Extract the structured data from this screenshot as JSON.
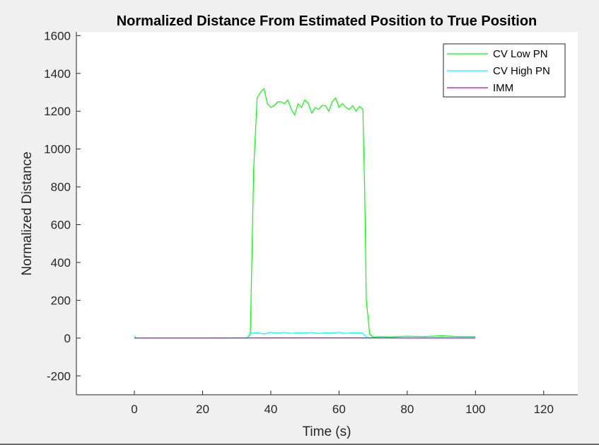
{
  "chart_data": {
    "type": "line",
    "title": "Normalized Distance From Estimated Position to True Position",
    "xlabel": "Time (s)",
    "ylabel": "Normalized Distance",
    "xlim": [
      -17,
      130
    ],
    "ylim": [
      -300,
      1620
    ],
    "xticks": [
      0,
      20,
      40,
      60,
      80,
      100,
      120
    ],
    "xtick_labels": [
      "0",
      "20",
      "40",
      "60",
      "80",
      "100",
      "120"
    ],
    "yticks": [
      -200,
      0,
      200,
      400,
      600,
      800,
      1000,
      1200,
      1400,
      1600
    ],
    "ytick_labels": [
      "-200",
      "0",
      "200",
      "400",
      "600",
      "800",
      "1000",
      "1200",
      "1400",
      "1600"
    ],
    "grid": false,
    "legend_position": "top-right",
    "series": [
      {
        "name": "CV Low PN",
        "color": "#00ff00",
        "x": [
          0,
          10,
          20,
          30,
          33,
          34,
          35,
          36,
          37,
          38,
          39,
          40,
          41,
          42,
          43,
          44,
          45,
          46,
          47,
          48,
          49,
          50,
          51,
          52,
          53,
          54,
          55,
          56,
          57,
          58,
          59,
          60,
          61,
          62,
          63,
          64,
          65,
          66,
          67,
          67.5,
          68,
          69,
          70,
          72,
          75,
          80,
          85,
          90,
          95,
          100
        ],
        "y": [
          0,
          0,
          0,
          0,
          0,
          20,
          900,
          1270,
          1300,
          1320,
          1240,
          1220,
          1230,
          1250,
          1250,
          1240,
          1260,
          1210,
          1180,
          1240,
          1220,
          1260,
          1240,
          1190,
          1220,
          1210,
          1230,
          1230,
          1200,
          1250,
          1270,
          1220,
          1240,
          1220,
          1210,
          1230,
          1200,
          1225,
          1210,
          800,
          200,
          20,
          5,
          8,
          6,
          10,
          8,
          12,
          8,
          8
        ]
      },
      {
        "name": "CV High PN",
        "color": "#00ffff",
        "x": [
          0,
          0.5,
          1,
          5,
          10,
          20,
          30,
          33,
          34,
          36,
          38,
          40,
          42,
          44,
          46,
          48,
          50,
          52,
          54,
          56,
          58,
          60,
          62,
          64,
          66,
          67,
          68,
          69,
          70,
          80,
          90,
          100
        ],
        "y": [
          12,
          2,
          0,
          0,
          0,
          0,
          0,
          0,
          25,
          28,
          22,
          30,
          26,
          30,
          25,
          28,
          26,
          30,
          24,
          28,
          26,
          30,
          25,
          28,
          27,
          26,
          5,
          2,
          2,
          2,
          2,
          2
        ]
      },
      {
        "name": "IMM",
        "color": "#c000c0",
        "x": [
          0,
          20,
          40,
          60,
          80,
          100
        ],
        "y": [
          0,
          0,
          1,
          1,
          0,
          0
        ]
      }
    ]
  }
}
